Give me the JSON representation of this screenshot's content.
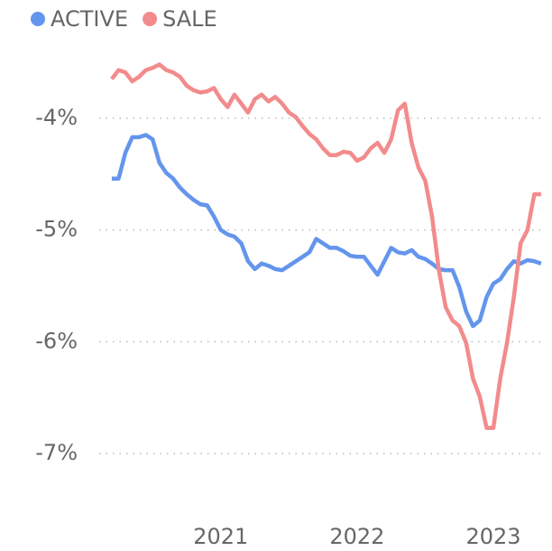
{
  "chart_data": {
    "type": "line",
    "x": [
      2020.2,
      2020.25,
      2020.3,
      2020.35,
      2020.4,
      2020.45,
      2020.5,
      2020.55,
      2020.6,
      2020.65,
      2020.7,
      2020.75,
      2020.8,
      2020.85,
      2020.9,
      2020.95,
      2021.0,
      2021.05,
      2021.1,
      2021.15,
      2021.2,
      2021.25,
      2021.3,
      2021.35,
      2021.4,
      2021.45,
      2021.5,
      2021.55,
      2021.6,
      2021.65,
      2021.7,
      2021.75,
      2021.8,
      2021.85,
      2021.9,
      2021.95,
      2022.0,
      2022.05,
      2022.1,
      2022.15,
      2022.2,
      2022.25,
      2022.3,
      2022.35,
      2022.4,
      2022.45,
      2022.5,
      2022.55,
      2022.6,
      2022.65,
      2022.7,
      2022.75,
      2022.8,
      2022.85,
      2022.9,
      2022.95,
      2023.0,
      2023.05,
      2023.1,
      2023.15,
      2023.2,
      2023.25,
      2023.3,
      2023.35
    ],
    "series": [
      {
        "name": "ACTIVE",
        "color": "#6495ed",
        "values": [
          -4.54,
          -4.54,
          -4.31,
          -4.17,
          -4.17,
          -4.15,
          -4.19,
          -4.4,
          -4.49,
          -4.54,
          -4.62,
          -4.68,
          -4.73,
          -4.77,
          -4.78,
          -4.88,
          -5.0,
          -5.04,
          -5.06,
          -5.12,
          -5.28,
          -5.35,
          -5.3,
          -5.32,
          -5.35,
          -5.36,
          -5.32,
          -5.28,
          -5.24,
          -5.2,
          -5.08,
          -5.12,
          -5.16,
          -5.16,
          -5.19,
          -5.23,
          -5.24,
          -5.24,
          -5.32,
          -5.4,
          -5.28,
          -5.16,
          -5.2,
          -5.21,
          -5.18,
          -5.24,
          -5.26,
          -5.3,
          -5.35,
          -5.36,
          -5.36,
          -5.51,
          -5.73,
          -5.86,
          -5.81,
          -5.6,
          -5.48,
          -5.44,
          -5.35,
          -5.28,
          -5.3,
          -5.27,
          -5.28,
          -5.3
        ]
      },
      {
        "name": "SALE",
        "color": "#f28b8c",
        "values": [
          -3.65,
          -3.57,
          -3.59,
          -3.67,
          -3.63,
          -3.57,
          -3.55,
          -3.52,
          -3.57,
          -3.59,
          -3.63,
          -3.71,
          -3.75,
          -3.77,
          -3.76,
          -3.73,
          -3.83,
          -3.9,
          -3.79,
          -3.87,
          -3.95,
          -3.83,
          -3.79,
          -3.85,
          -3.81,
          -3.87,
          -3.95,
          -3.99,
          -4.07,
          -4.14,
          -4.19,
          -4.27,
          -4.33,
          -4.33,
          -4.3,
          -4.31,
          -4.38,
          -4.35,
          -4.27,
          -4.22,
          -4.31,
          -4.19,
          -3.93,
          -3.87,
          -4.22,
          -4.44,
          -4.56,
          -4.88,
          -5.36,
          -5.69,
          -5.81,
          -5.86,
          -6.01,
          -6.33,
          -6.49,
          -6.77,
          -6.77,
          -6.33,
          -6.01,
          -5.6,
          -5.12,
          -5.0,
          -4.68,
          -4.68
        ]
      }
    ],
    "xlim": [
      2019.38,
      2023.43
    ],
    "xticks": [
      2021,
      2022,
      2023
    ],
    "ylim": [
      -7.5,
      -3.3
    ],
    "yticks": [
      {
        "value": -4,
        "label": "-4%"
      },
      {
        "value": -5,
        "label": "-5%"
      },
      {
        "value": -6,
        "label": "-6%"
      },
      {
        "value": -7,
        "label": "-7%"
      }
    ],
    "grid": true
  }
}
